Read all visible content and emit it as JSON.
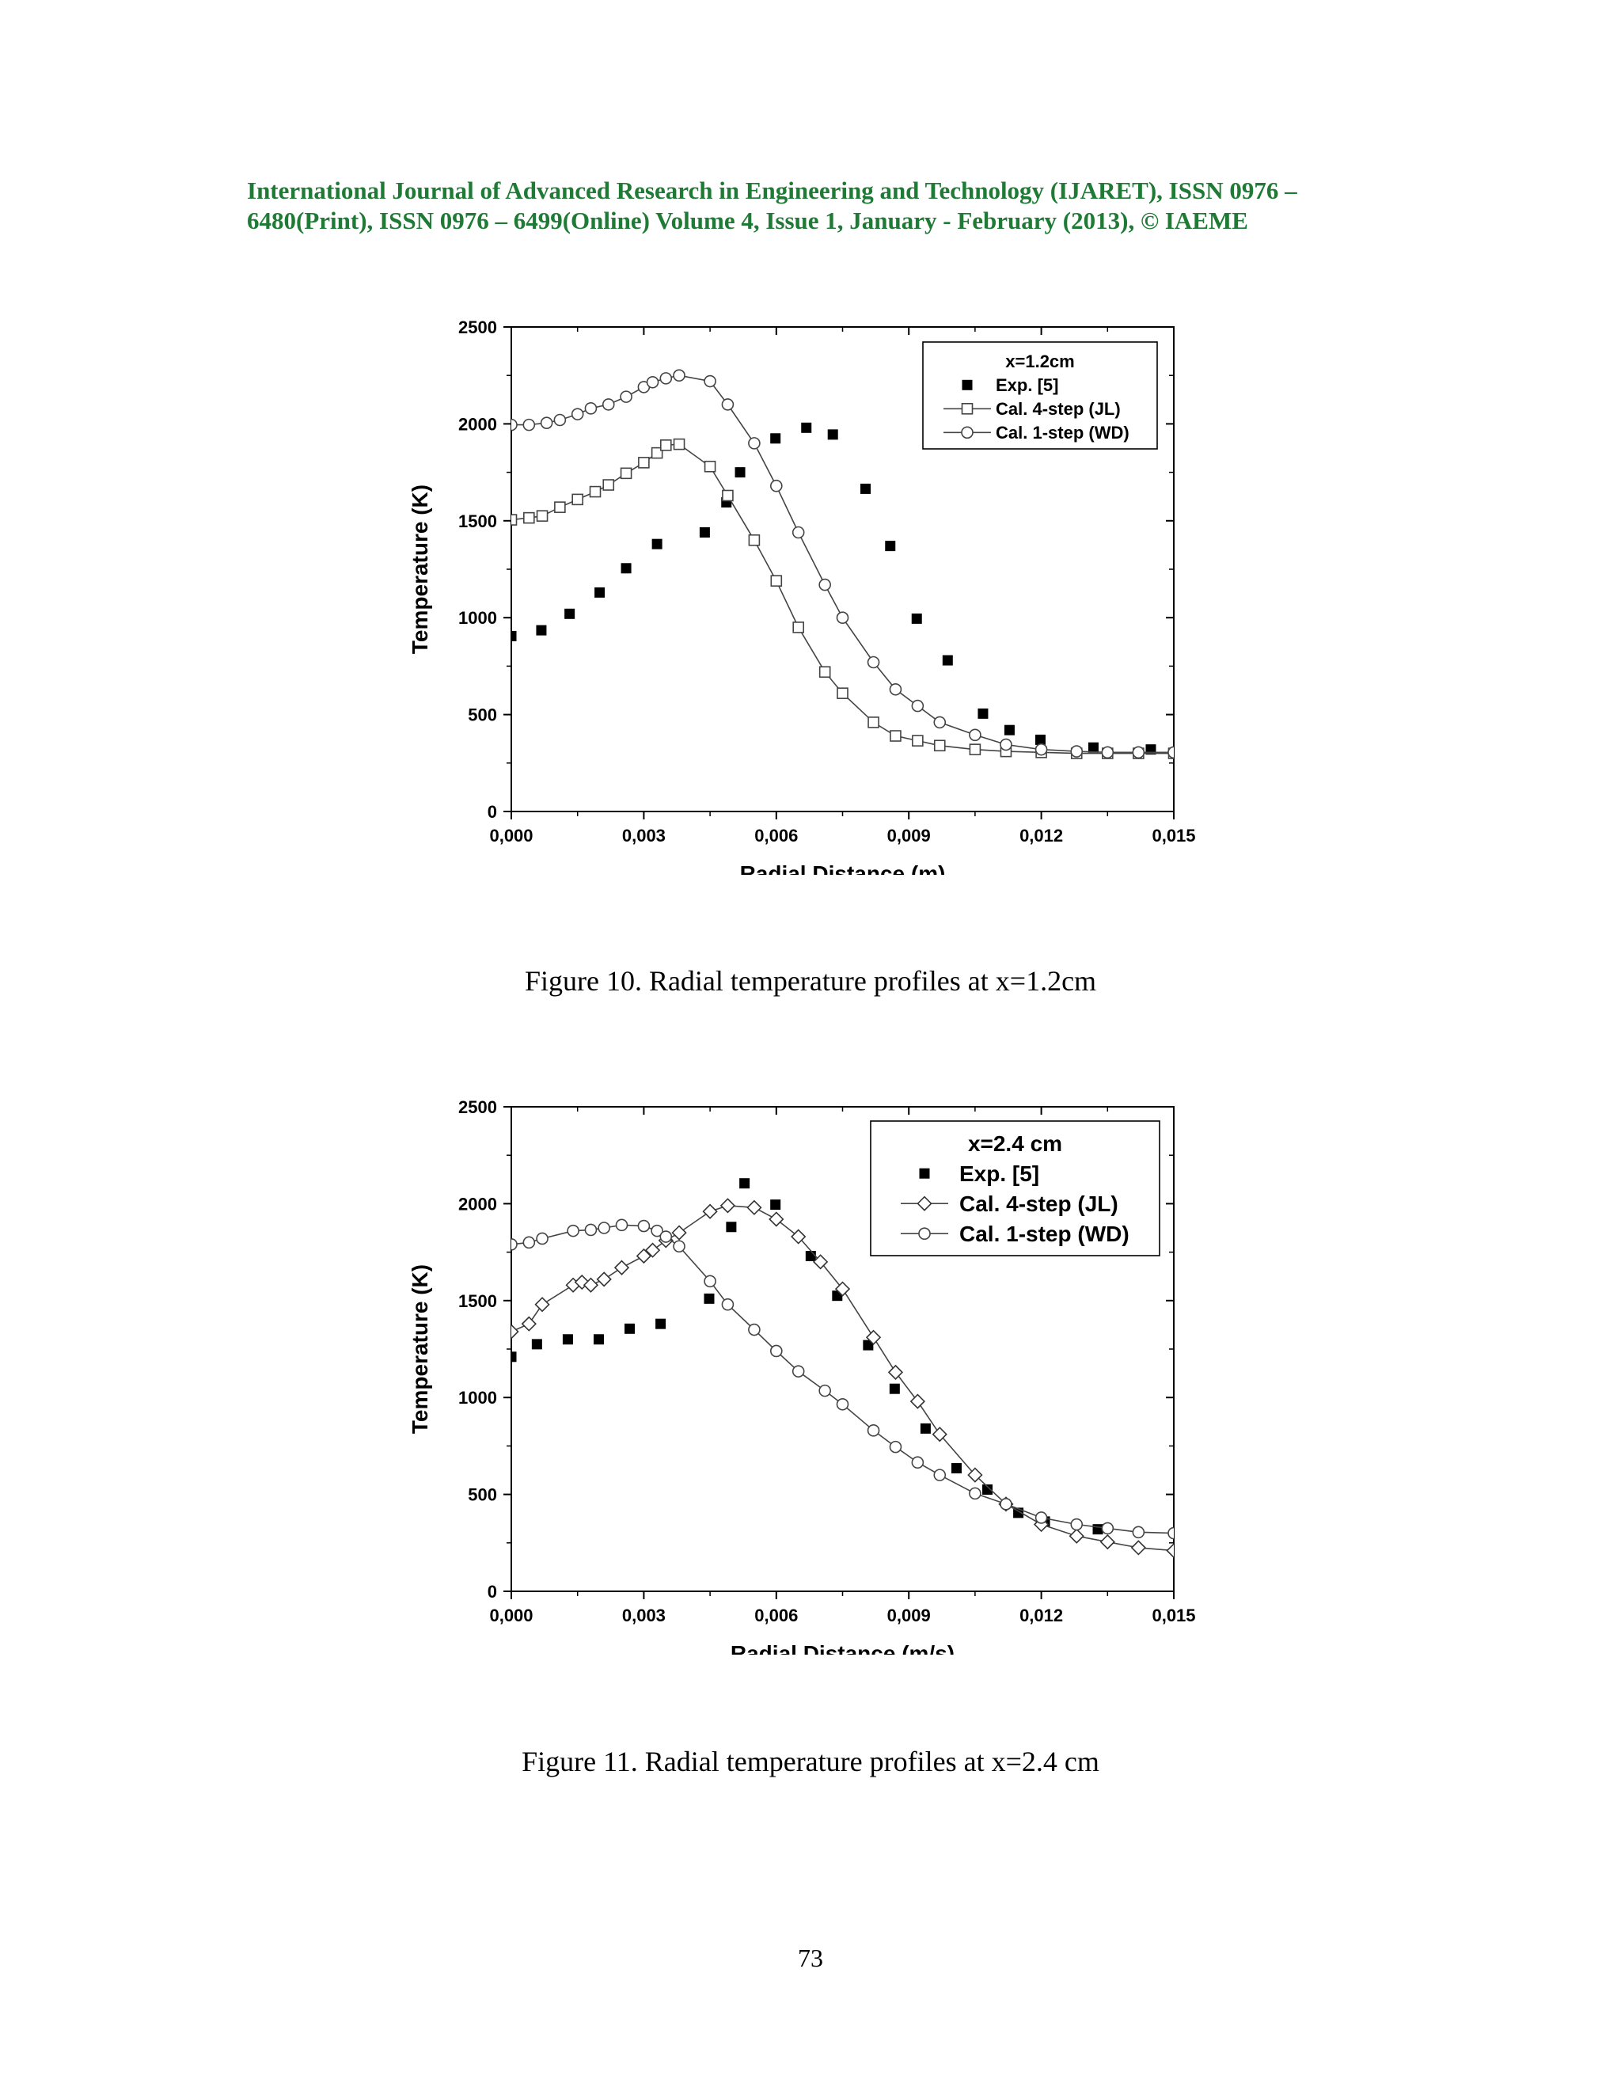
{
  "header": {
    "line1": "International Journal of Advanced Research in Engineering and Technology (IJARET), ISSN 0976 –",
    "line2": "6480(Print), ISSN 0976 – 6499(Online) Volume 4, Issue 1, January - February (2013), © IAEME"
  },
  "captions": {
    "fig10": "Figure 10. Radial temperature profiles at x=1.2cm",
    "fig11": "Figure 11. Radial temperature profiles at x=2.4 cm"
  },
  "page_number": "73",
  "chart_data": [
    {
      "type": "scatter",
      "xlabel": "Radial Distance (m)",
      "ylabel": "Temperature (K)",
      "xlim": [
        0,
        0.015
      ],
      "ylim": [
        0,
        2500
      ],
      "xticks": [
        "0,000",
        "0,003",
        "0,006",
        "0,009",
        "0,012",
        "0,015"
      ],
      "yticks": [
        "0",
        "500",
        "1000",
        "1500",
        "2000",
        "2500"
      ],
      "legend_title": "x=1.2cm",
      "legend_position": "top-right",
      "grid": false,
      "series": [
        {
          "name": "Exp. [5]",
          "marker": "filled-square",
          "line": false,
          "x": [
            0.0,
            0.00068,
            0.00132,
            0.002,
            0.0026,
            0.0033,
            0.00438,
            0.00487,
            0.00518,
            0.00598,
            0.00668,
            0.00728,
            0.00802,
            0.00858,
            0.00918,
            0.00988,
            0.01068,
            0.01128,
            0.01198,
            0.01318,
            0.01448
          ],
          "y": [
            905,
            935,
            1020,
            1130,
            1255,
            1380,
            1440,
            1595,
            1750,
            1925,
            1980,
            1945,
            1665,
            1370,
            995,
            780,
            505,
            420,
            370,
            330,
            320
          ]
        },
        {
          "name": "Cal. 4-step (JL)",
          "marker": "open-square",
          "line": true,
          "x": [
            0.0,
            0.0004,
            0.0007,
            0.0011,
            0.0015,
            0.0019,
            0.0022,
            0.0026,
            0.003,
            0.0033,
            0.0035,
            0.0038,
            0.0045,
            0.0049,
            0.0055,
            0.006,
            0.0065,
            0.0071,
            0.0075,
            0.0082,
            0.0087,
            0.0092,
            0.0097,
            0.0105,
            0.0112,
            0.012,
            0.0128,
            0.0135,
            0.0142,
            0.015
          ],
          "y": [
            1505,
            1515,
            1525,
            1570,
            1610,
            1650,
            1685,
            1745,
            1800,
            1850,
            1890,
            1895,
            1780,
            1630,
            1400,
            1190,
            950,
            720,
            610,
            460,
            390,
            365,
            340,
            320,
            310,
            305,
            300,
            300,
            300,
            300
          ]
        },
        {
          "name": "Cal. 1-step (WD)",
          "marker": "open-circle",
          "line": true,
          "x": [
            0.0,
            0.0004,
            0.0008,
            0.0011,
            0.0015,
            0.0018,
            0.0022,
            0.0026,
            0.003,
            0.0032,
            0.0035,
            0.0038,
            0.0045,
            0.0049,
            0.0055,
            0.006,
            0.0065,
            0.0071,
            0.0075,
            0.0082,
            0.0087,
            0.0092,
            0.0097,
            0.0105,
            0.0112,
            0.012,
            0.0128,
            0.0135,
            0.0142,
            0.015
          ],
          "y": [
            1995,
            1995,
            2005,
            2020,
            2050,
            2080,
            2100,
            2140,
            2190,
            2215,
            2235,
            2250,
            2220,
            2100,
            1900,
            1680,
            1440,
            1170,
            1000,
            770,
            630,
            545,
            460,
            395,
            345,
            320,
            310,
            305,
            305,
            305
          ]
        }
      ]
    },
    {
      "type": "scatter",
      "xlabel": "Radial Distance (m/s)",
      "ylabel": "Temperature (K)",
      "xlim": [
        0,
        0.015
      ],
      "ylim": [
        0,
        2500
      ],
      "xticks": [
        "0,000",
        "0,003",
        "0,006",
        "0,009",
        "0,012",
        "0,015"
      ],
      "yticks": [
        "0",
        "500",
        "1000",
        "1500",
        "2000",
        "2500"
      ],
      "legend_title": "x=2.4 cm",
      "legend_position": "top-right",
      "grid": false,
      "series": [
        {
          "name": "Exp. [5]",
          "marker": "filled-square",
          "line": false,
          "x": [
            0.0,
            0.00058,
            0.00128,
            0.00198,
            0.00268,
            0.00338,
            0.00448,
            0.00498,
            0.00528,
            0.00598,
            0.00678,
            0.00738,
            0.00808,
            0.00868,
            0.00938,
            0.01008,
            0.01078,
            0.01148,
            0.01208,
            0.01328
          ],
          "y": [
            1210,
            1275,
            1300,
            1300,
            1355,
            1380,
            1510,
            1880,
            2105,
            1995,
            1730,
            1525,
            1270,
            1045,
            840,
            635,
            525,
            405,
            360,
            320
          ]
        },
        {
          "name": "Cal. 4-step (JL)",
          "marker": "open-diamond",
          "line": true,
          "x": [
            0.0,
            0.0004,
            0.0007,
            0.0014,
            0.0016,
            0.0018,
            0.0021,
            0.0025,
            0.003,
            0.0032,
            0.0035,
            0.0038,
            0.0045,
            0.0049,
            0.0055,
            0.006,
            0.0065,
            0.007,
            0.0075,
            0.0082,
            0.0087,
            0.0092,
            0.0097,
            0.0105,
            0.0112,
            0.012,
            0.0128,
            0.0135,
            0.0142,
            0.015
          ],
          "y": [
            1340,
            1380,
            1480,
            1580,
            1595,
            1580,
            1610,
            1670,
            1730,
            1760,
            1810,
            1850,
            1960,
            1990,
            1980,
            1920,
            1830,
            1700,
            1560,
            1310,
            1130,
            980,
            810,
            600,
            450,
            345,
            285,
            255,
            225,
            210
          ]
        },
        {
          "name": "Cal. 1-step (WD)",
          "marker": "open-circle",
          "line": true,
          "x": [
            0.0,
            0.0004,
            0.0007,
            0.0014,
            0.0018,
            0.0021,
            0.0025,
            0.003,
            0.0033,
            0.0035,
            0.0038,
            0.0045,
            0.0049,
            0.0055,
            0.006,
            0.0065,
            0.0071,
            0.0075,
            0.0082,
            0.0087,
            0.0092,
            0.0097,
            0.0105,
            0.0112,
            0.012,
            0.0128,
            0.0135,
            0.0142,
            0.015
          ],
          "y": [
            1790,
            1800,
            1820,
            1860,
            1865,
            1875,
            1890,
            1885,
            1860,
            1830,
            1780,
            1600,
            1480,
            1350,
            1240,
            1135,
            1035,
            965,
            830,
            745,
            665,
            600,
            505,
            450,
            380,
            345,
            325,
            305,
            300
          ]
        }
      ]
    }
  ]
}
